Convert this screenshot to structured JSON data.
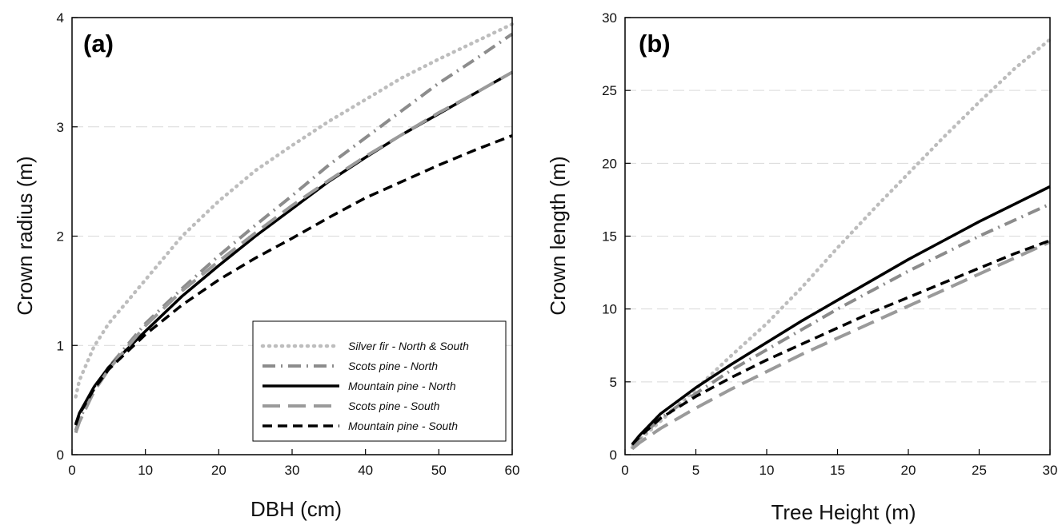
{
  "chart_data": [
    {
      "type": "line",
      "panel_label": "(a)",
      "xlabel": "DBH (cm)",
      "ylabel": "Crown radius (m)",
      "xlim": [
        0,
        60
      ],
      "ylim": [
        0,
        4
      ],
      "xticks": [
        "0",
        "10",
        "20",
        "30",
        "40",
        "50",
        "60"
      ],
      "yticks": [
        "0",
        "1",
        "2",
        "3",
        "4"
      ],
      "grid": "horizontal dashed",
      "legend_position": "bottom-right",
      "legend": [
        "Silver fir - North & South",
        "Scots pine - North",
        "Mountain pine - North",
        "Scots pine - South",
        "Mountain pine - South"
      ],
      "series": [
        {
          "name": "Silver fir - North & South",
          "style": "dotted",
          "color": "#bdbdbd",
          "x": [
            0.5,
            1,
            3,
            5,
            10,
            15,
            20,
            25,
            30,
            35,
            40,
            45,
            50,
            55,
            60
          ],
          "y": [
            0.53,
            0.68,
            0.99,
            1.2,
            1.6,
            2.0,
            2.32,
            2.6,
            2.83,
            3.05,
            3.25,
            3.45,
            3.62,
            3.78,
            3.94
          ]
        },
        {
          "name": "Scots pine - North",
          "style": "dash-dot",
          "color": "#8c8c8c",
          "x": [
            0.5,
            1,
            3,
            5,
            10,
            15,
            20,
            25,
            30,
            35,
            40,
            45,
            50,
            55,
            60
          ],
          "y": [
            0.22,
            0.32,
            0.6,
            0.8,
            1.2,
            1.52,
            1.82,
            2.1,
            2.37,
            2.65,
            2.9,
            3.15,
            3.4,
            3.62,
            3.85
          ]
        },
        {
          "name": "Mountain pine - North",
          "style": "solid",
          "color": "#000000",
          "x": [
            0.5,
            1,
            3,
            5,
            10,
            15,
            20,
            25,
            30,
            35,
            40,
            45,
            50,
            55,
            60
          ],
          "y": [
            0.28,
            0.38,
            0.62,
            0.8,
            1.13,
            1.45,
            1.73,
            2.0,
            2.25,
            2.5,
            2.72,
            2.93,
            3.12,
            3.31,
            3.5
          ]
        },
        {
          "name": "Scots pine - South",
          "style": "long-dash",
          "color": "#9a9a9a",
          "x": [
            0.5,
            1,
            3,
            5,
            10,
            15,
            20,
            25,
            30,
            35,
            40,
            45,
            50,
            55,
            60
          ],
          "y": [
            0.2,
            0.3,
            0.58,
            0.78,
            1.18,
            1.5,
            1.77,
            2.03,
            2.28,
            2.51,
            2.73,
            2.93,
            3.13,
            3.31,
            3.5
          ]
        },
        {
          "name": "Mountain pine - South",
          "style": "dashed",
          "color": "#000000",
          "x": [
            0.5,
            1,
            3,
            5,
            10,
            15,
            20,
            25,
            30,
            35,
            40,
            45,
            50,
            55,
            60
          ],
          "y": [
            0.27,
            0.37,
            0.6,
            0.78,
            1.1,
            1.37,
            1.6,
            1.8,
            1.98,
            2.17,
            2.35,
            2.5,
            2.65,
            2.79,
            2.92
          ]
        }
      ]
    },
    {
      "type": "line",
      "panel_label": "(b)",
      "xlabel": "Tree Height (m)",
      "ylabel": "Crown length (m)",
      "xlim": [
        0,
        30
      ],
      "ylim": [
        0,
        30
      ],
      "xticks": [
        "0",
        "5",
        "10",
        "15",
        "20",
        "25",
        "30"
      ],
      "yticks": [
        "0",
        "5",
        "10",
        "15",
        "20",
        "25",
        "30"
      ],
      "grid": "horizontal dashed",
      "series": [
        {
          "name": "Silver fir - North & South",
          "style": "dotted",
          "color": "#bdbdbd",
          "x": [
            0.5,
            1,
            2.5,
            5,
            7.5,
            10,
            12.5,
            15,
            17.5,
            20,
            22.5,
            25,
            27.5,
            30
          ],
          "y": [
            0.5,
            1.0,
            2.3,
            4.5,
            6.8,
            9.0,
            11.5,
            14.2,
            16.8,
            19.3,
            21.8,
            24.2,
            26.5,
            28.5
          ]
        },
        {
          "name": "Scots pine - North",
          "style": "dash-dot",
          "color": "#8c8c8c",
          "x": [
            0.5,
            1,
            2.5,
            5,
            7.5,
            10,
            12.5,
            15,
            17.5,
            20,
            22.5,
            25,
            27.5,
            30
          ],
          "y": [
            0.6,
            1.1,
            2.5,
            4.2,
            5.8,
            7.2,
            8.6,
            10.0,
            11.3,
            12.6,
            13.8,
            15.0,
            16.1,
            17.2
          ]
        },
        {
          "name": "Mountain pine - North",
          "style": "solid",
          "color": "#000000",
          "x": [
            0.5,
            1,
            2.5,
            5,
            7.5,
            10,
            12.5,
            15,
            17.5,
            20,
            22.5,
            25,
            27.5,
            30
          ],
          "y": [
            0.7,
            1.3,
            2.8,
            4.6,
            6.2,
            7.7,
            9.2,
            10.6,
            12.0,
            13.4,
            14.7,
            16.0,
            17.2,
            18.4
          ]
        },
        {
          "name": "Scots pine - South",
          "style": "long-dash",
          "color": "#9a9a9a",
          "x": [
            0.5,
            1,
            2.5,
            5,
            7.5,
            10,
            12.5,
            15,
            17.5,
            20,
            22.5,
            25,
            27.5,
            30
          ],
          "y": [
            0.4,
            0.8,
            1.8,
            3.2,
            4.5,
            5.7,
            6.9,
            8.0,
            9.1,
            10.2,
            11.3,
            12.4,
            13.5,
            14.6
          ]
        },
        {
          "name": "Mountain pine - South",
          "style": "dashed",
          "color": "#000000",
          "x": [
            0.5,
            1,
            2.5,
            5,
            7.5,
            10,
            12.5,
            15,
            17.5,
            20,
            22.5,
            25,
            27.5,
            30
          ],
          "y": [
            0.7,
            1.2,
            2.5,
            4.0,
            5.3,
            6.5,
            7.6,
            8.7,
            9.8,
            10.8,
            11.8,
            12.8,
            13.8,
            14.7
          ]
        }
      ]
    }
  ]
}
